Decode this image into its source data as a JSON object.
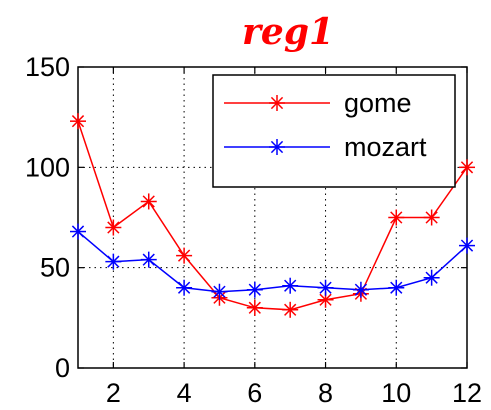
{
  "chart_data": {
    "type": "line",
    "title": "reg1",
    "x": [
      1,
      2,
      3,
      4,
      5,
      6,
      7,
      8,
      9,
      10,
      11,
      12
    ],
    "xlim": [
      1,
      12
    ],
    "ylim": [
      0,
      150
    ],
    "xticks": [
      2,
      4,
      6,
      8,
      10,
      12
    ],
    "yticks": [
      0,
      50,
      100,
      150
    ],
    "grid": true,
    "legend_position": "top-right",
    "series": [
      {
        "name": "gome",
        "color": "#ff0000",
        "marker": "asterisk",
        "values": [
          123,
          70,
          83,
          56,
          35,
          30,
          29,
          34,
          37,
          75,
          75,
          100
        ]
      },
      {
        "name": "mozart",
        "color": "#0000ff",
        "marker": "asterisk",
        "values": [
          68,
          53,
          54,
          40,
          38,
          39,
          41,
          40,
          39,
          40,
          45,
          61
        ]
      }
    ]
  }
}
